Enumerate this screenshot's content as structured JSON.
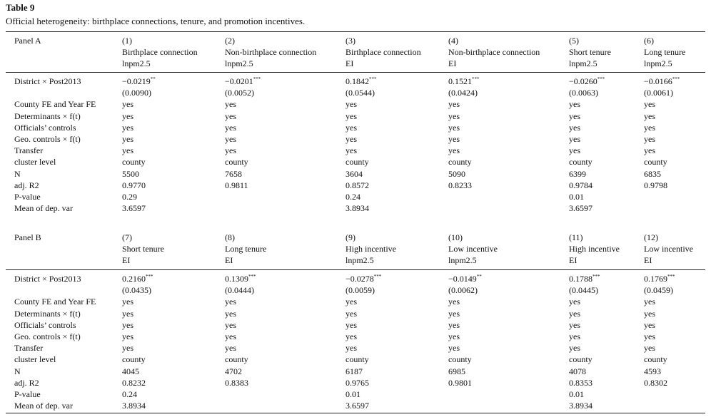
{
  "header": {
    "title": "Table 9",
    "caption": "Official heterogeneity: birthplace connections, tenure, and promotion incentives."
  },
  "panels": [
    {
      "label": "Panel A",
      "columns": [
        {
          "number": "(1)",
          "group": "Birthplace connection",
          "outcome": "lnpm2.5"
        },
        {
          "number": "(2)",
          "group": "Non-birthplace connection",
          "outcome": "lnpm2.5"
        },
        {
          "number": "(3)",
          "group": "Birthplace connection",
          "outcome": "EI"
        },
        {
          "number": "(4)",
          "group": "Non-birthplace connection",
          "outcome": "EI"
        },
        {
          "number": "(5)",
          "group": "Short tenure",
          "outcome": "lnpm2.5"
        },
        {
          "number": "(6)",
          "group": "Long tenure",
          "outcome": "lnpm2.5"
        }
      ],
      "coef_row": {
        "label": "District × Post2013",
        "coefs": [
          {
            "value": "−0.0219",
            "stars": "**"
          },
          {
            "value": "−0.0201",
            "stars": "***"
          },
          {
            "value": "0.1842",
            "stars": "***"
          },
          {
            "value": "0.1521",
            "stars": "***"
          },
          {
            "value": "−0.0260",
            "stars": "***"
          },
          {
            "value": "−0.0166",
            "stars": "***"
          }
        ],
        "ses": [
          "(0.0090)",
          "(0.0052)",
          "(0.0544)",
          "(0.0424)",
          "(0.0063)",
          "(0.0061)"
        ]
      },
      "rows": [
        {
          "label": "County FE and Year FE",
          "cells": [
            "yes",
            "yes",
            "yes",
            "yes",
            "yes",
            "yes"
          ]
        },
        {
          "label": "Determinants × f(t)",
          "cells": [
            "yes",
            "yes",
            "yes",
            "yes",
            "yes",
            "yes"
          ]
        },
        {
          "label": "Officials’ controls",
          "cells": [
            "yes",
            "yes",
            "yes",
            "yes",
            "yes",
            "yes"
          ]
        },
        {
          "label": "Geo. controls × f(t)",
          "cells": [
            "yes",
            "yes",
            "yes",
            "yes",
            "yes",
            "yes"
          ]
        },
        {
          "label": "Transfer",
          "cells": [
            "yes",
            "yes",
            "yes",
            "yes",
            "yes",
            "yes"
          ]
        },
        {
          "label": "cluster level",
          "cells": [
            "county",
            "county",
            "county",
            "county",
            "county",
            "county"
          ]
        },
        {
          "label": "N",
          "cells": [
            "5500",
            "7658",
            "3604",
            "5090",
            "6399",
            "6835"
          ]
        },
        {
          "label": "adj. R2",
          "cells": [
            "0.9770",
            "0.9811",
            "0.8572",
            "0.8233",
            "0.9784",
            "0.9798"
          ]
        },
        {
          "label": "P-value",
          "cells": [
            "0.29",
            null,
            "0.24",
            null,
            "0.01",
            null
          ]
        },
        {
          "label": "Mean of dep. var",
          "cells": [
            "3.6597",
            null,
            "3.8934",
            null,
            "3.6597",
            null
          ]
        }
      ]
    },
    {
      "label": "Panel B",
      "columns": [
        {
          "number": "(7)",
          "group": "Short tenure",
          "outcome": "EI"
        },
        {
          "number": "(8)",
          "group": "Long tenure",
          "outcome": "EI"
        },
        {
          "number": "(9)",
          "group": "High incentive",
          "outcome": "lnpm2.5"
        },
        {
          "number": "(10)",
          "group": "Low incentive",
          "outcome": "lnpm2.5"
        },
        {
          "number": "(11)",
          "group": "High incentive",
          "outcome": "EI"
        },
        {
          "number": "(12)",
          "group": "Low incentive",
          "outcome": "EI"
        }
      ],
      "coef_row": {
        "label": "District × Post2013",
        "coefs": [
          {
            "value": "0.2160",
            "stars": "***"
          },
          {
            "value": "0.1309",
            "stars": "***"
          },
          {
            "value": "−0.0278",
            "stars": "***"
          },
          {
            "value": "−0.0149",
            "stars": "**"
          },
          {
            "value": "0.1788",
            "stars": "***"
          },
          {
            "value": "0.1769",
            "stars": "***"
          }
        ],
        "ses": [
          "(0.0435)",
          "(0.0444)",
          "(0.0059)",
          "(0.0062)",
          "(0.0445)",
          "(0.0459)"
        ]
      },
      "rows": [
        {
          "label": "County FE and Year FE",
          "cells": [
            "yes",
            "yes",
            "yes",
            "yes",
            "yes",
            "yes"
          ]
        },
        {
          "label": "Determinants × f(t)",
          "cells": [
            "yes",
            "yes",
            "yes",
            "yes",
            "yes",
            "yes"
          ]
        },
        {
          "label": "Officials’ controls",
          "cells": [
            "yes",
            "yes",
            "yes",
            "yes",
            "yes",
            "yes"
          ]
        },
        {
          "label": "Geo. controls × f(t)",
          "cells": [
            "yes",
            "yes",
            "yes",
            "yes",
            "yes",
            "yes"
          ]
        },
        {
          "label": "Transfer",
          "cells": [
            "yes",
            "yes",
            "yes",
            "yes",
            "yes",
            "yes"
          ]
        },
        {
          "label": "cluster level",
          "cells": [
            "county",
            "county",
            "county",
            "county",
            "county",
            "county"
          ]
        },
        {
          "label": "N",
          "cells": [
            "4045",
            "4702",
            "6187",
            "6985",
            "4078",
            "4593"
          ]
        },
        {
          "label": "adj. R2",
          "cells": [
            "0.8232",
            "0.8383",
            "0.9765",
            "0.9801",
            "0.8353",
            "0.8302"
          ]
        },
        {
          "label": "P-value",
          "cells": [
            "0.24",
            null,
            "0.01",
            null,
            "0.01",
            null
          ]
        },
        {
          "label": "Mean of dep. var",
          "cells": [
            "3.8934",
            null,
            "3.6597",
            null,
            "3.8934",
            null
          ]
        }
      ]
    }
  ]
}
